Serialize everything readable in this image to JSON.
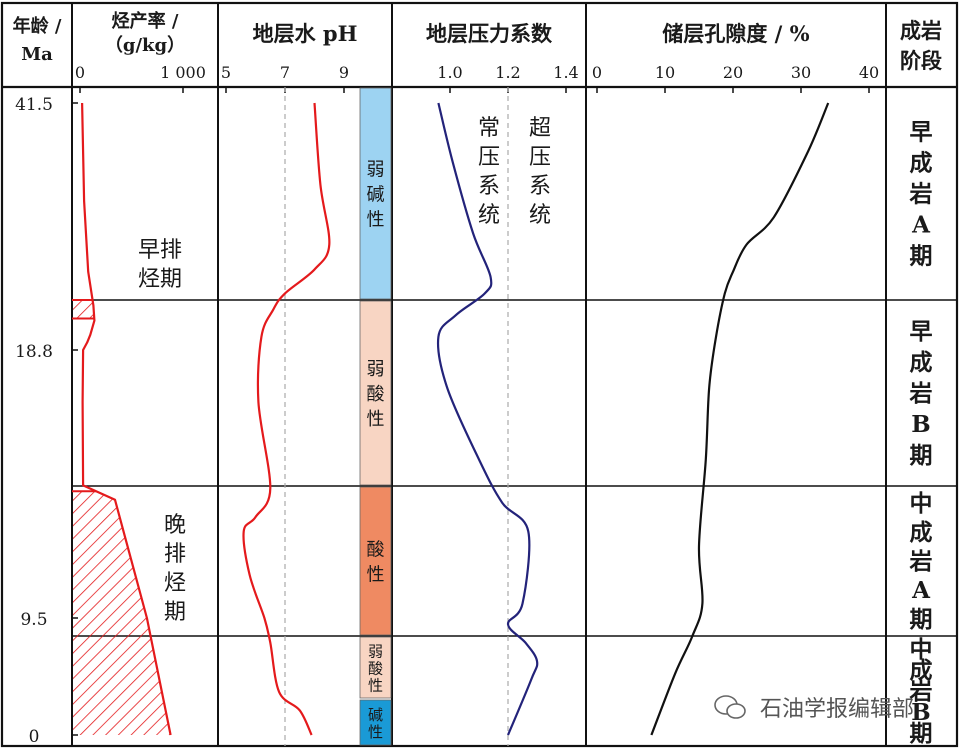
{
  "headers": {
    "age": [
      "年龄 /",
      "Ma"
    ],
    "hc_rate": [
      "烃产率 /",
      "（g/kg）"
    ],
    "ph": "地层水 pH",
    "pressure": "地层压力系数",
    "porosity": "储层孔隙度 / %",
    "stage": [
      "成岩",
      "阶段"
    ]
  },
  "axes": {
    "hc_rate": {
      "ticks": [
        "0",
        "1 000"
      ],
      "range": [
        0,
        1000
      ]
    },
    "ph": {
      "ticks": [
        "5",
        "7",
        "9"
      ],
      "range": [
        5,
        9
      ],
      "ref": 7
    },
    "pressure": {
      "ticks": [
        "1.0",
        "1.2",
        "1.4"
      ],
      "range": [
        0.9,
        1.45
      ],
      "ref": 1.2
    },
    "porosity": {
      "ticks": [
        "0",
        "10",
        "20",
        "30",
        "40"
      ],
      "range": [
        0,
        40
      ]
    },
    "age": {
      "ticks": [
        "41.5",
        "18.8",
        "9.5",
        "0"
      ]
    }
  },
  "labels": {
    "early_expulsion": [
      "早排",
      "烃期"
    ],
    "late_expulsion": [
      "晚",
      "排",
      "烃",
      "期"
    ],
    "normal_pressure": [
      "常",
      "压",
      "系",
      "统"
    ],
    "over_pressure": [
      "超",
      "压",
      "系",
      "统"
    ]
  },
  "ph_zones": [
    {
      "label": "弱碱性",
      "color": "#9dd3f2"
    },
    {
      "label": "弱酸性",
      "color": "#f8d5c3"
    },
    {
      "label": "酸性",
      "color": "#ef8a62"
    },
    {
      "label": "弱酸性",
      "color": "#f8d5c3"
    },
    {
      "label": "碱性",
      "color": "#1a9ad6"
    }
  ],
  "stages": [
    {
      "label": [
        "早",
        "成",
        "岩",
        "A",
        "期"
      ]
    },
    {
      "label": [
        "早",
        "成",
        "岩",
        "B",
        "期"
      ]
    },
    {
      "label": [
        "中",
        "成",
        "岩",
        "A",
        "期"
      ]
    },
    {
      "label": [
        "中",
        "成",
        "岩",
        "B",
        "期"
      ]
    }
  ],
  "colors": {
    "hc_line": "#e41a1c",
    "ph_line": "#e41a1c",
    "pressure_line": "#23237a",
    "porosity_line": "#111111",
    "ref_line": "#aaaaaa",
    "hatch": "#e41a1c"
  },
  "chart_data": {
    "type": "line",
    "y_axis": "age (Ma)",
    "series": [
      {
        "values": [
          [
            20,
            41.5
          ],
          [
            40,
            32.5
          ],
          [
            80,
            26.0
          ],
          [
            130,
            22.9
          ],
          [
            140,
            21.5
          ],
          [
            100,
            20.2
          ],
          [
            70,
            19.5
          ],
          [
            30,
            18.8
          ],
          [
            25,
            17.0
          ],
          [
            30,
            14.1
          ],
          [
            340,
            13.6
          ],
          [
            650,
            9.5
          ],
          [
            880,
            0
          ]
        ]
      },
      {
        "values": [
          [
            8.0,
            41.5
          ],
          [
            8.2,
            34.0
          ],
          [
            8.5,
            28.5
          ],
          [
            8.0,
            26.2
          ],
          [
            7.0,
            24.0
          ],
          [
            6.6,
            22.5
          ],
          [
            6.2,
            20.0
          ],
          [
            6.1,
            17.0
          ],
          [
            6.5,
            14.0
          ],
          [
            6.0,
            13.0
          ],
          [
            5.6,
            12.5
          ],
          [
            5.8,
            11.0
          ],
          [
            6.3,
            9.5
          ],
          [
            6.5,
            7.5
          ],
          [
            6.8,
            3.5
          ],
          [
            7.5,
            2.0
          ],
          [
            7.9,
            0
          ]
        ]
      },
      {
        "values": [
          [
            0.96,
            41.5
          ],
          [
            1.01,
            36.0
          ],
          [
            1.08,
            29.5
          ],
          [
            1.14,
            25.5
          ],
          [
            1.12,
            24.0
          ],
          [
            1.02,
            22.0
          ],
          [
            0.96,
            20.0
          ],
          [
            0.99,
            17.5
          ],
          [
            1.1,
            15.0
          ],
          [
            1.18,
            13.5
          ],
          [
            1.27,
            12.5
          ],
          [
            1.25,
            10.0
          ],
          [
            1.2,
            9.0
          ],
          [
            1.26,
            7.5
          ],
          [
            1.3,
            6.0
          ],
          [
            1.28,
            4.5
          ],
          [
            1.2,
            0
          ]
        ]
      },
      {
        "values": [
          [
            34.0,
            41.5
          ],
          [
            31.0,
            37.0
          ],
          [
            26.0,
            31.0
          ],
          [
            22.0,
            28.5
          ],
          [
            20.0,
            26.0
          ],
          [
            18.8,
            24.0
          ],
          [
            17.5,
            20.0
          ],
          [
            16.5,
            17.5
          ],
          [
            16.0,
            15.0
          ],
          [
            15.0,
            12.0
          ],
          [
            15.5,
            10.0
          ],
          [
            14.0,
            8.0
          ],
          [
            11.5,
            5.0
          ],
          [
            8.0,
            0
          ]
        ]
      }
    ],
    "hatched_intervals": [
      {
        "age_range": [
          21.7,
          23.4
        ]
      },
      {
        "age_range": [
          0,
          13.9
        ]
      }
    ],
    "grid": false
  },
  "watermark": "石油学报编辑部"
}
